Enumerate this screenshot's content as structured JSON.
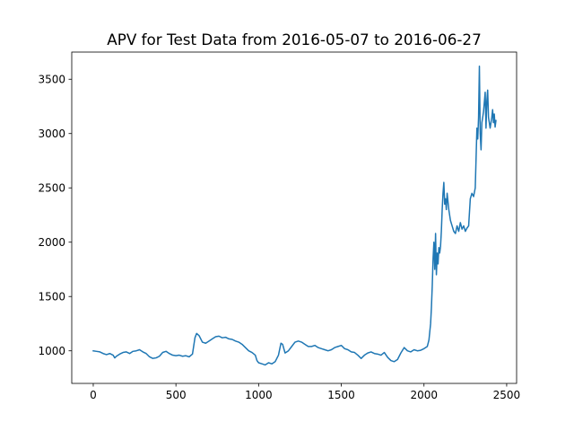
{
  "chart_data": {
    "type": "line",
    "title": "APV for Test Data from 2016-05-07 to 2016-06-27",
    "xlabel": "",
    "ylabel": "",
    "xlim": [
      -130,
      2560
    ],
    "ylim": [
      700,
      3750
    ],
    "x_ticks": [
      0,
      500,
      1000,
      1500,
      2000,
      2500
    ],
    "y_ticks": [
      1000,
      1500,
      2000,
      2500,
      3000,
      3500
    ],
    "grid": false,
    "colors": {
      "series": "#1f77b4"
    },
    "series": [
      {
        "points": [
          [
            0,
            1000
          ],
          [
            20,
            995
          ],
          [
            40,
            990
          ],
          [
            60,
            975
          ],
          [
            80,
            965
          ],
          [
            100,
            975
          ],
          [
            120,
            960
          ],
          [
            130,
            935
          ],
          [
            140,
            950
          ],
          [
            160,
            970
          ],
          [
            180,
            985
          ],
          [
            200,
            990
          ],
          [
            220,
            975
          ],
          [
            240,
            995
          ],
          [
            260,
            1000
          ],
          [
            280,
            1010
          ],
          [
            300,
            990
          ],
          [
            320,
            975
          ],
          [
            340,
            945
          ],
          [
            360,
            930
          ],
          [
            380,
            935
          ],
          [
            400,
            950
          ],
          [
            420,
            985
          ],
          [
            440,
            995
          ],
          [
            460,
            975
          ],
          [
            480,
            960
          ],
          [
            500,
            955
          ],
          [
            520,
            960
          ],
          [
            540,
            950
          ],
          [
            560,
            955
          ],
          [
            580,
            945
          ],
          [
            600,
            970
          ],
          [
            615,
            1120
          ],
          [
            625,
            1160
          ],
          [
            640,
            1140
          ],
          [
            660,
            1080
          ],
          [
            680,
            1070
          ],
          [
            700,
            1090
          ],
          [
            720,
            1110
          ],
          [
            740,
            1130
          ],
          [
            760,
            1135
          ],
          [
            780,
            1120
          ],
          [
            800,
            1125
          ],
          [
            820,
            1110
          ],
          [
            840,
            1105
          ],
          [
            860,
            1090
          ],
          [
            880,
            1080
          ],
          [
            900,
            1060
          ],
          [
            920,
            1030
          ],
          [
            940,
            1000
          ],
          [
            960,
            985
          ],
          [
            980,
            960
          ],
          [
            990,
            910
          ],
          [
            1000,
            890
          ],
          [
            1020,
            880
          ],
          [
            1040,
            870
          ],
          [
            1060,
            890
          ],
          [
            1080,
            880
          ],
          [
            1100,
            900
          ],
          [
            1120,
            960
          ],
          [
            1135,
            1070
          ],
          [
            1145,
            1060
          ],
          [
            1160,
            980
          ],
          [
            1180,
            1000
          ],
          [
            1200,
            1040
          ],
          [
            1220,
            1080
          ],
          [
            1240,
            1090
          ],
          [
            1260,
            1080
          ],
          [
            1280,
            1060
          ],
          [
            1300,
            1040
          ],
          [
            1320,
            1040
          ],
          [
            1340,
            1050
          ],
          [
            1360,
            1030
          ],
          [
            1380,
            1020
          ],
          [
            1400,
            1010
          ],
          [
            1420,
            1000
          ],
          [
            1440,
            1010
          ],
          [
            1460,
            1030
          ],
          [
            1480,
            1040
          ],
          [
            1500,
            1050
          ],
          [
            1520,
            1020
          ],
          [
            1540,
            1010
          ],
          [
            1560,
            990
          ],
          [
            1580,
            985
          ],
          [
            1600,
            960
          ],
          [
            1620,
            930
          ],
          [
            1640,
            960
          ],
          [
            1660,
            980
          ],
          [
            1680,
            990
          ],
          [
            1700,
            975
          ],
          [
            1720,
            970
          ],
          [
            1740,
            960
          ],
          [
            1760,
            985
          ],
          [
            1780,
            940
          ],
          [
            1800,
            910
          ],
          [
            1820,
            900
          ],
          [
            1840,
            920
          ],
          [
            1860,
            980
          ],
          [
            1880,
            1030
          ],
          [
            1900,
            1000
          ],
          [
            1920,
            990
          ],
          [
            1940,
            1010
          ],
          [
            1960,
            1000
          ],
          [
            1980,
            1005
          ],
          [
            2000,
            1020
          ],
          [
            2020,
            1040
          ],
          [
            2030,
            1100
          ],
          [
            2040,
            1250
          ],
          [
            2045,
            1400
          ],
          [
            2050,
            1600
          ],
          [
            2055,
            1850
          ],
          [
            2060,
            2000
          ],
          [
            2065,
            1750
          ],
          [
            2070,
            2080
          ],
          [
            2075,
            1700
          ],
          [
            2080,
            1900
          ],
          [
            2085,
            1800
          ],
          [
            2090,
            1950
          ],
          [
            2095,
            1900
          ],
          [
            2100,
            1960
          ],
          [
            2105,
            2100
          ],
          [
            2110,
            2300
          ],
          [
            2115,
            2450
          ],
          [
            2120,
            2550
          ],
          [
            2125,
            2350
          ],
          [
            2130,
            2400
          ],
          [
            2135,
            2300
          ],
          [
            2140,
            2450
          ],
          [
            2150,
            2300
          ],
          [
            2160,
            2200
          ],
          [
            2170,
            2150
          ],
          [
            2180,
            2100
          ],
          [
            2190,
            2080
          ],
          [
            2200,
            2150
          ],
          [
            2210,
            2100
          ],
          [
            2220,
            2180
          ],
          [
            2230,
            2120
          ],
          [
            2240,
            2150
          ],
          [
            2250,
            2100
          ],
          [
            2260,
            2130
          ],
          [
            2270,
            2150
          ],
          [
            2280,
            2400
          ],
          [
            2290,
            2450
          ],
          [
            2300,
            2420
          ],
          [
            2310,
            2500
          ],
          [
            2320,
            3050
          ],
          [
            2325,
            2950
          ],
          [
            2330,
            3150
          ],
          [
            2335,
            3620
          ],
          [
            2340,
            3000
          ],
          [
            2345,
            2850
          ],
          [
            2350,
            3100
          ],
          [
            2360,
            3200
          ],
          [
            2370,
            3380
          ],
          [
            2375,
            3050
          ],
          [
            2380,
            3300
          ],
          [
            2385,
            3400
          ],
          [
            2390,
            3150
          ],
          [
            2400,
            3050
          ],
          [
            2410,
            3150
          ],
          [
            2415,
            3220
          ],
          [
            2420,
            3100
          ],
          [
            2425,
            3180
          ],
          [
            2430,
            3060
          ],
          [
            2435,
            3120
          ]
        ]
      }
    ]
  }
}
